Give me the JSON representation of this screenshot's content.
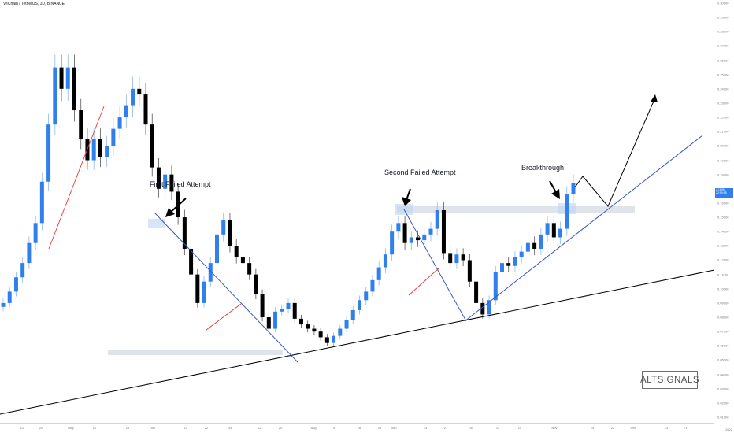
{
  "header": {
    "symbol_line": "VeChain / TetherUS, 1D, BINANCE"
  },
  "price_tag": {
    "value": "0.16961",
    "sub": "22:59:58"
  },
  "watermark": "ALTSIGNALS",
  "footer_year": "2022",
  "chart_data": {
    "type": "candlestick",
    "title": "VeChain / TetherUS, 1D, BINANCE",
    "xlabel": "",
    "ylabel": "",
    "grid": false,
    "y_ticks": [
      "0.30000",
      "0.29000",
      "0.28000",
      "0.27000",
      "0.26000",
      "0.25000",
      "0.24000",
      "0.23000",
      "0.22000",
      "0.21000",
      "0.20000",
      "0.19000",
      "0.18000",
      "0.17000",
      "0.16000",
      "0.15000",
      "0.14000",
      "0.13000",
      "0.12000",
      "0.11000",
      "0.10000",
      "0.09000",
      "0.08000",
      "0.07000",
      "0.06000",
      "0.05000",
      "0.04000",
      "0.03000",
      "0.02000",
      "0.01000"
    ],
    "x_ticks": [
      {
        "label": "12"
      },
      {
        "label": "20"
      },
      {
        "label": "May"
      },
      {
        "label": "10"
      },
      {
        "label": "24"
      },
      {
        "label": "Jun"
      },
      {
        "label": "14"
      },
      {
        "label": "22"
      },
      {
        "label": "Jul"
      },
      {
        "label": "12"
      },
      {
        "label": "20"
      },
      {
        "label": "Aug"
      },
      {
        "label": "9"
      },
      {
        "label": "16"
      },
      {
        "label": "23"
      },
      {
        "label": "Sep"
      },
      {
        "label": "13"
      },
      {
        "label": "21"
      },
      {
        "label": "Oct"
      },
      {
        "label": "11"
      },
      {
        "label": "19"
      },
      {
        "label": "Nov"
      },
      {
        "label": "15"
      },
      {
        "label": "22"
      },
      {
        "label": "Dec"
      },
      {
        "label": "13"
      },
      {
        "label": "21"
      }
    ],
    "close_prices": [
      0.09,
      0.098,
      0.108,
      0.118,
      0.132,
      0.146,
      0.175,
      0.215,
      0.255,
      0.24,
      0.255,
      0.225,
      0.205,
      0.19,
      0.205,
      0.192,
      0.2,
      0.212,
      0.22,
      0.228,
      0.24,
      0.236,
      0.215,
      0.185,
      0.17,
      0.18,
      0.168,
      0.15,
      0.128,
      0.11,
      0.09,
      0.105,
      0.118,
      0.138,
      0.148,
      0.13,
      0.122,
      0.118,
      0.11,
      0.096,
      0.08,
      0.072,
      0.084,
      0.086,
      0.09,
      0.079,
      0.075,
      0.072,
      0.07,
      0.066,
      0.062,
      0.067,
      0.072,
      0.078,
      0.085,
      0.092,
      0.098,
      0.106,
      0.115,
      0.124,
      0.14,
      0.146,
      0.132,
      0.136,
      0.134,
      0.138,
      0.142,
      0.155,
      0.125,
      0.118,
      0.124,
      0.12,
      0.105,
      0.09,
      0.082,
      0.092,
      0.112,
      0.118,
      0.116,
      0.122,
      0.126,
      0.132,
      0.128,
      0.138,
      0.146,
      0.136,
      0.142,
      0.166,
      0.174
    ],
    "annotations": [
      {
        "text": "First Failed Attempt"
      },
      {
        "text": "Second Failed Attempt"
      },
      {
        "text": "Breakthrough"
      }
    ],
    "levels": {
      "resistance": 0.1575,
      "support": 0.0595
    },
    "colors": {
      "up": "#2f80ed",
      "down": "#000000",
      "trendline_blue": "#3a5bbf",
      "trendline_red": "#e53935",
      "zone": "#dfe3ea",
      "highlight": "#bcd3f2"
    }
  }
}
